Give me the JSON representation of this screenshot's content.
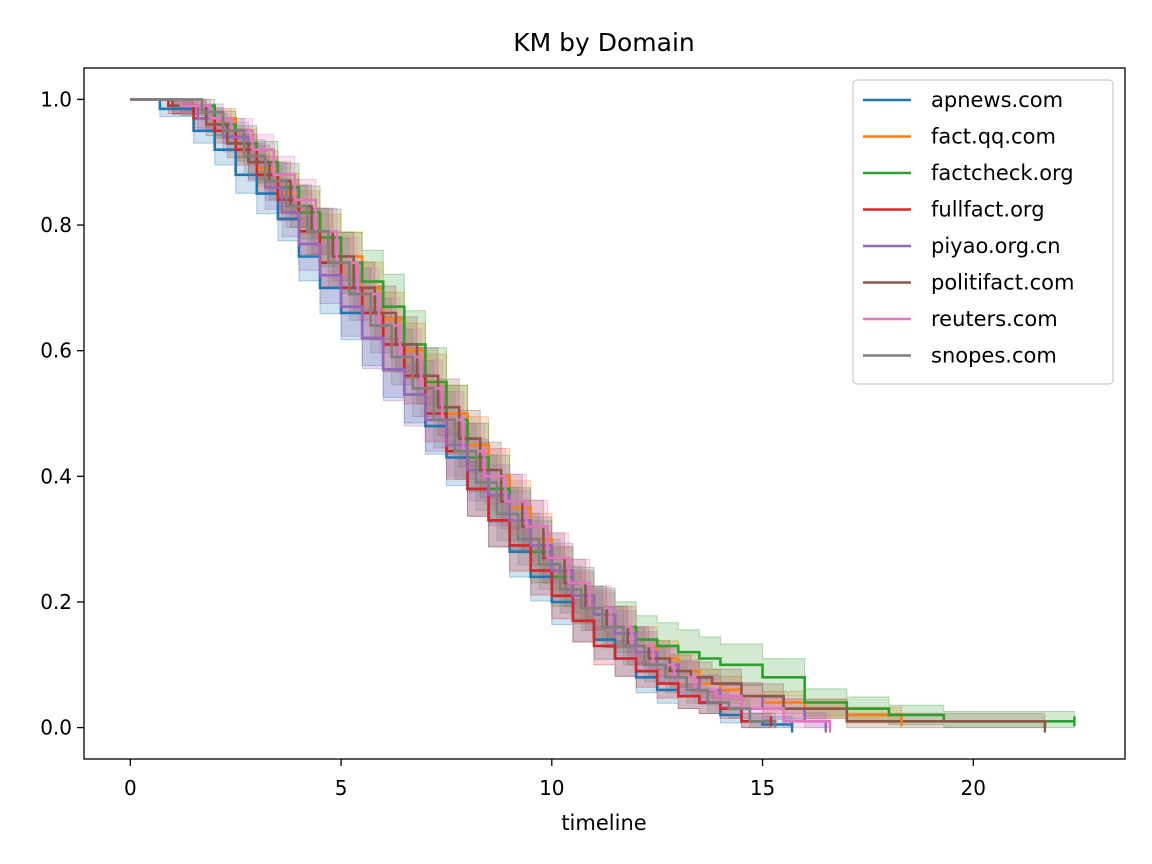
{
  "chart_data": {
    "type": "line",
    "title": "KM by Domain",
    "xlabel": "timeline",
    "ylabel": "",
    "xlim": [
      -1.1,
      23.6
    ],
    "ylim": [
      -0.05,
      1.05
    ],
    "xticks": [
      0,
      5,
      10,
      15,
      20
    ],
    "xtick_labels": [
      "0",
      "5",
      "10",
      "15",
      "20"
    ],
    "yticks": [
      0.0,
      0.2,
      0.4,
      0.6,
      0.8,
      1.0
    ],
    "ytick_labels": [
      "0.0",
      "0.2",
      "0.4",
      "0.6",
      "0.8",
      "1.0"
    ],
    "legend_position": "top-right",
    "grid": false,
    "series": [
      {
        "name": "apnews.com",
        "color": "#1f77b4",
        "band": 0.045,
        "x": [
          0,
          0.7,
          1.5,
          2.0,
          2.5,
          3.0,
          3.5,
          4.0,
          4.5,
          5.0,
          5.5,
          6.0,
          6.5,
          7.0,
          7.5,
          8.0,
          8.5,
          9.0,
          9.5,
          10.0,
          10.5,
          11.0,
          11.5,
          12.0,
          12.5,
          13.0,
          13.5,
          14.0,
          14.5,
          15.0,
          15.7
        ],
        "y": [
          1.0,
          0.985,
          0.95,
          0.92,
          0.88,
          0.85,
          0.81,
          0.75,
          0.7,
          0.66,
          0.62,
          0.57,
          0.53,
          0.48,
          0.43,
          0.38,
          0.33,
          0.28,
          0.24,
          0.2,
          0.17,
          0.14,
          0.11,
          0.08,
          0.06,
          0.05,
          0.04,
          0.02,
          0.01,
          0.005,
          0.0
        ],
        "censor_x": [
          15.7
        ]
      },
      {
        "name": "fact.qq.com",
        "color": "#ff7f0e",
        "band": 0.045,
        "x": [
          0,
          1.0,
          1.8,
          2.5,
          3.0,
          3.5,
          4.0,
          4.5,
          5.0,
          5.5,
          6.0,
          6.5,
          7.0,
          7.5,
          8.0,
          8.5,
          9.0,
          9.5,
          10.0,
          10.5,
          11.0,
          11.5,
          12.0,
          12.5,
          13.0,
          13.5,
          14.0,
          14.5,
          15.0,
          16.0,
          17.0,
          18.3
        ],
        "y": [
          1.0,
          0.99,
          0.97,
          0.93,
          0.89,
          0.85,
          0.82,
          0.78,
          0.75,
          0.7,
          0.65,
          0.6,
          0.55,
          0.5,
          0.45,
          0.4,
          0.35,
          0.3,
          0.25,
          0.21,
          0.18,
          0.16,
          0.13,
          0.11,
          0.09,
          0.07,
          0.06,
          0.05,
          0.04,
          0.03,
          0.02,
          0.01
        ],
        "censor_x": [
          18.3
        ]
      },
      {
        "name": "factcheck.org",
        "color": "#2ca02c",
        "band": 0.055,
        "x": [
          0,
          1.2,
          2.0,
          2.5,
          3.0,
          3.5,
          4.0,
          4.5,
          5.0,
          5.5,
          6.0,
          6.5,
          7.0,
          7.5,
          8.0,
          8.5,
          9.0,
          9.5,
          10.0,
          10.5,
          11.0,
          11.5,
          12.0,
          12.5,
          13.0,
          13.5,
          14.0,
          15.0,
          16.0,
          17.0,
          18.0,
          19.3,
          22.0,
          22.4
        ],
        "y": [
          1.0,
          0.99,
          0.96,
          0.93,
          0.9,
          0.86,
          0.82,
          0.78,
          0.74,
          0.71,
          0.67,
          0.61,
          0.55,
          0.49,
          0.43,
          0.38,
          0.33,
          0.28,
          0.24,
          0.21,
          0.18,
          0.16,
          0.14,
          0.13,
          0.12,
          0.11,
          0.1,
          0.08,
          0.04,
          0.03,
          0.02,
          0.01,
          0.01,
          0.01
        ],
        "censor_x": [
          22.4
        ]
      },
      {
        "name": "fullfact.org",
        "color": "#d62728",
        "band": 0.045,
        "x": [
          0,
          0.9,
          1.5,
          2.0,
          2.5,
          3.0,
          3.5,
          4.0,
          4.5,
          5.0,
          5.5,
          6.0,
          6.5,
          7.0,
          7.5,
          8.0,
          8.5,
          9.0,
          9.5,
          10.0,
          10.5,
          11.0,
          11.5,
          12.0,
          12.5,
          13.0,
          13.5,
          14.0,
          14.5,
          15.2
        ],
        "y": [
          1.0,
          0.99,
          0.97,
          0.95,
          0.92,
          0.88,
          0.84,
          0.79,
          0.74,
          0.7,
          0.66,
          0.61,
          0.56,
          0.5,
          0.44,
          0.38,
          0.33,
          0.29,
          0.25,
          0.21,
          0.17,
          0.13,
          0.11,
          0.09,
          0.07,
          0.05,
          0.04,
          0.03,
          0.01,
          0.01
        ],
        "censor_x": [
          15.2
        ]
      },
      {
        "name": "piyao.org.cn",
        "color": "#9467bd",
        "band": 0.05,
        "x": [
          0,
          1.0,
          1.6,
          2.2,
          2.8,
          3.2,
          3.6,
          4.0,
          4.5,
          5.0,
          5.5,
          6.0,
          6.5,
          7.0,
          7.5,
          8.0,
          8.5,
          9.0,
          9.5,
          10.0,
          10.5,
          11.0,
          11.5,
          12.0,
          12.5,
          13.0,
          13.5,
          14.0,
          15.0,
          16.0,
          16.5
        ],
        "y": [
          1.0,
          0.99,
          0.97,
          0.94,
          0.9,
          0.86,
          0.82,
          0.77,
          0.72,
          0.67,
          0.62,
          0.57,
          0.53,
          0.49,
          0.45,
          0.41,
          0.37,
          0.33,
          0.29,
          0.25,
          0.21,
          0.18,
          0.15,
          0.12,
          0.1,
          0.08,
          0.06,
          0.05,
          0.03,
          0.01,
          0.0
        ],
        "censor_x": [
          16.5
        ]
      },
      {
        "name": "politifact.com",
        "color": "#8c564b",
        "band": 0.045,
        "x": [
          0,
          1.0,
          1.8,
          2.3,
          2.8,
          3.3,
          3.8,
          4.3,
          4.8,
          5.3,
          5.8,
          6.3,
          6.8,
          7.3,
          7.8,
          8.3,
          8.8,
          9.3,
          9.8,
          10.3,
          10.8,
          11.3,
          11.8,
          12.3,
          12.8,
          13.3,
          13.8,
          14.5,
          15.5,
          17.0,
          21.7
        ],
        "y": [
          1.0,
          0.99,
          0.96,
          0.93,
          0.9,
          0.87,
          0.83,
          0.79,
          0.75,
          0.7,
          0.66,
          0.61,
          0.56,
          0.51,
          0.46,
          0.41,
          0.36,
          0.32,
          0.27,
          0.23,
          0.19,
          0.16,
          0.13,
          0.11,
          0.09,
          0.08,
          0.07,
          0.05,
          0.03,
          0.01,
          0.0
        ],
        "censor_x": [
          21.7
        ]
      },
      {
        "name": "reuters.com",
        "color": "#e377c2",
        "band": 0.045,
        "x": [
          0,
          1.2,
          1.9,
          2.4,
          2.9,
          3.4,
          3.9,
          4.4,
          4.9,
          5.4,
          5.9,
          6.4,
          6.9,
          7.4,
          7.9,
          8.4,
          8.9,
          9.4,
          9.9,
          10.4,
          10.9,
          11.4,
          11.9,
          12.4,
          12.9,
          13.4,
          13.9,
          14.5,
          15.5,
          16.6
        ],
        "y": [
          1.0,
          0.99,
          0.97,
          0.95,
          0.92,
          0.88,
          0.84,
          0.79,
          0.74,
          0.69,
          0.64,
          0.59,
          0.54,
          0.49,
          0.44,
          0.4,
          0.36,
          0.32,
          0.27,
          0.23,
          0.19,
          0.16,
          0.13,
          0.1,
          0.08,
          0.06,
          0.05,
          0.03,
          0.01,
          0.0
        ],
        "censor_x": [
          16.6
        ]
      },
      {
        "name": "snopes.com",
        "color": "#7f7f7f",
        "band": 0.045,
        "x": [
          0,
          1.7,
          2.2,
          2.7,
          3.2,
          3.7,
          4.2,
          4.7,
          5.2,
          5.7,
          6.2,
          6.7,
          7.2,
          7.7,
          8.2,
          8.7,
          9.2,
          9.7,
          10.2,
          10.7,
          11.2,
          11.7,
          12.2,
          12.7,
          13.2,
          13.7,
          14.2,
          14.7,
          15.3
        ],
        "y": [
          1.0,
          0.98,
          0.95,
          0.91,
          0.87,
          0.83,
          0.79,
          0.74,
          0.69,
          0.64,
          0.59,
          0.54,
          0.49,
          0.44,
          0.39,
          0.34,
          0.3,
          0.26,
          0.22,
          0.19,
          0.16,
          0.13,
          0.1,
          0.08,
          0.06,
          0.04,
          0.03,
          0.01,
          0.0
        ],
        "censor_x": []
      }
    ]
  }
}
